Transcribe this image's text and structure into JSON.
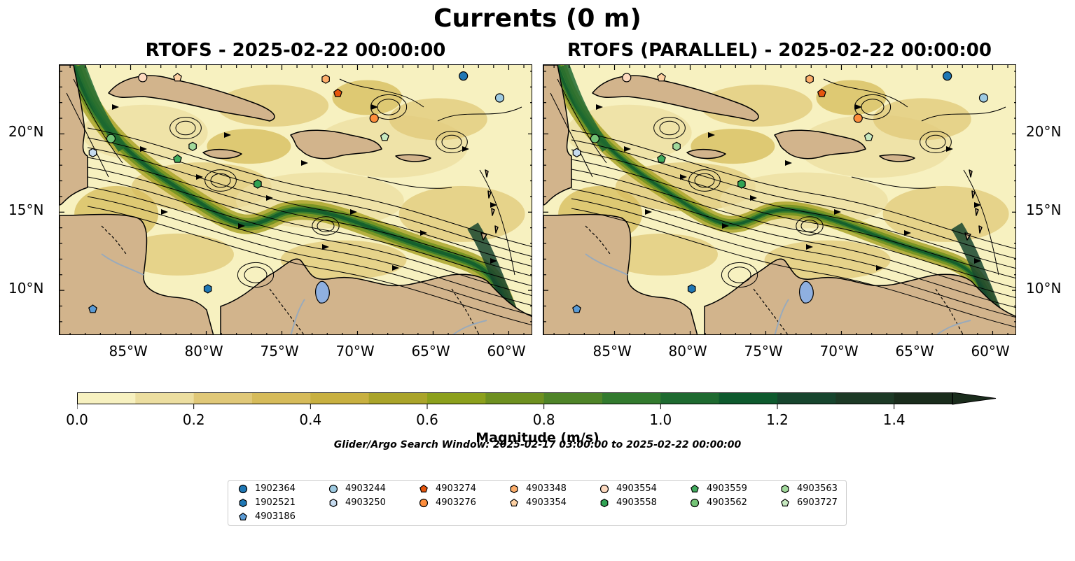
{
  "figure": {
    "title": "Currents (0 m)",
    "panels": [
      {
        "title": "RTOFS - 2025-02-22 00:00:00"
      },
      {
        "title": "RTOFS (PARALLEL) - 2025-02-22 00:00:00"
      }
    ],
    "lon_labels": [
      "85°W",
      "80°W",
      "75°W",
      "70°W",
      "65°W",
      "60°W"
    ],
    "lat_labels": [
      "20°N",
      "15°N",
      "10°N"
    ],
    "extent": {
      "lon": [
        -89.7,
        -58.4
      ],
      "lat": [
        7.1,
        24.4
      ]
    }
  },
  "colorbar": {
    "label": "Magnitude (m/s)",
    "ticks": [
      "0.0",
      "0.2",
      "0.4",
      "0.6",
      "0.8",
      "1.0",
      "1.2",
      "1.4"
    ],
    "range": [
      0,
      1.5
    ],
    "colors": [
      "#f7f1c0",
      "#ecdea0",
      "#e0c878",
      "#d6bb5a",
      "#c8b040",
      "#aaa42a",
      "#8ca01c",
      "#6e9020",
      "#4f8428",
      "#327a2e",
      "#1e6a30",
      "#0e5a2e",
      "#17452e",
      "#1d3a26",
      "#1a2c1c"
    ],
    "extend": "max"
  },
  "search_window": "Glider/Argo Search Window: 2025-02-17 03:00:00 to 2025-02-22 00:00:00",
  "land_color": "#d2b48c",
  "lake_color": "#8fb0e0",
  "legend": {
    "items": [
      {
        "label": "1902364",
        "marker": "circle",
        "color": "#1f77b4"
      },
      {
        "label": "1902521",
        "marker": "hexagon",
        "color": "#1f77b4"
      },
      {
        "label": "4903186",
        "marker": "pentagon",
        "color": "#5b9bd5"
      },
      {
        "label": "4903244",
        "marker": "circle",
        "color": "#9ecae1"
      },
      {
        "label": "4903250",
        "marker": "hexagon",
        "color": "#c6dbef"
      },
      {
        "label": "4903274",
        "marker": "pentagon",
        "color": "#e6550d"
      },
      {
        "label": "4903276",
        "marker": "circle",
        "color": "#fd8d3c"
      },
      {
        "label": "4903348",
        "marker": "hexagon",
        "color": "#fdae6b"
      },
      {
        "label": "4903354",
        "marker": "pentagon",
        "color": "#fdd0a2"
      },
      {
        "label": "4903554",
        "marker": "circle",
        "color": "#fdd9bf"
      },
      {
        "label": "4903558",
        "marker": "hexagon",
        "color": "#31a354"
      },
      {
        "label": "4903559",
        "marker": "pentagon",
        "color": "#41ab5d"
      },
      {
        "label": "4903562",
        "marker": "circle",
        "color": "#74c476"
      },
      {
        "label": "4903563",
        "marker": "hexagon",
        "color": "#a1d99b"
      },
      {
        "label": "6903727",
        "marker": "pentagon",
        "color": "#c7e9c0"
      }
    ]
  },
  "floats": [
    {
      "id": "1902364",
      "lon": -63.0,
      "lat": 23.7
    },
    {
      "id": "4903244",
      "lon": -60.6,
      "lat": 22.3
    },
    {
      "id": "4903276",
      "lon": -68.9,
      "lat": 21.0
    },
    {
      "id": "6903727",
      "lon": -68.2,
      "lat": 19.8
    },
    {
      "id": "4903274",
      "lon": -71.3,
      "lat": 22.6
    },
    {
      "id": "4903348",
      "lon": -72.1,
      "lat": 23.5
    },
    {
      "id": "4903354",
      "lon": -81.9,
      "lat": 23.6
    },
    {
      "id": "4903554",
      "lon": -84.2,
      "lat": 23.6
    },
    {
      "id": "4903562",
      "lon": -86.3,
      "lat": 19.7
    },
    {
      "id": "4903250",
      "lon": -87.5,
      "lat": 18.8
    },
    {
      "id": "4903563",
      "lon": -80.9,
      "lat": 19.2
    },
    {
      "id": "4903559",
      "lon": -81.9,
      "lat": 18.4
    },
    {
      "id": "4903558",
      "lon": -76.6,
      "lat": 16.8
    },
    {
      "id": "1902521",
      "lon": -79.9,
      "lat": 10.1
    },
    {
      "id": "4903186",
      "lon": -87.5,
      "lat": 8.8
    }
  ]
}
